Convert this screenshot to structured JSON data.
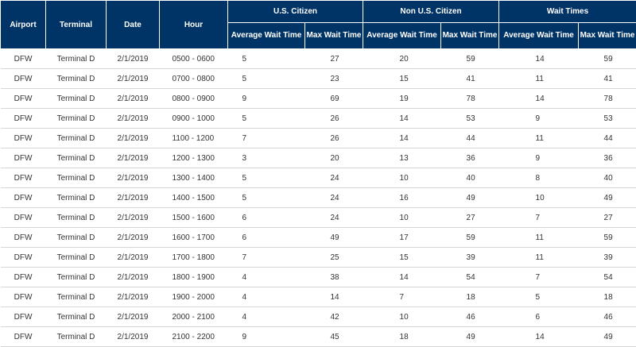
{
  "table": {
    "headers": {
      "airport": "Airport",
      "terminal": "Terminal",
      "date": "Date",
      "hour": "Hour",
      "us_citizen": "U.S. Citizen",
      "non_us_citizen": "Non U.S. Citizen",
      "wait_times": "Wait Times",
      "avg_wait_time": "Average Wait Time",
      "max_wait_time": "Max Wait Time"
    },
    "rows": [
      {
        "airport": "DFW",
        "terminal": "Terminal D",
        "date": "2/1/2019",
        "hour": "0500 - 0600",
        "us_avg": "5",
        "us_max": "27",
        "non_avg": "20",
        "non_max": "59",
        "wt_avg": "14",
        "wt_max": "59"
      },
      {
        "airport": "DFW",
        "terminal": "Terminal D",
        "date": "2/1/2019",
        "hour": "0700 - 0800",
        "us_avg": "5",
        "us_max": "23",
        "non_avg": "15",
        "non_max": "41",
        "wt_avg": "11",
        "wt_max": "41"
      },
      {
        "airport": "DFW",
        "terminal": "Terminal D",
        "date": "2/1/2019",
        "hour": "0800 - 0900",
        "us_avg": "9",
        "us_max": "69",
        "non_avg": "19",
        "non_max": "78",
        "wt_avg": "14",
        "wt_max": "78"
      },
      {
        "airport": "DFW",
        "terminal": "Terminal D",
        "date": "2/1/2019",
        "hour": "0900 - 1000",
        "us_avg": "5",
        "us_max": "26",
        "non_avg": "14",
        "non_max": "53",
        "wt_avg": "9",
        "wt_max": "53"
      },
      {
        "airport": "DFW",
        "terminal": "Terminal D",
        "date": "2/1/2019",
        "hour": "1100 - 1200",
        "us_avg": "7",
        "us_max": "26",
        "non_avg": "14",
        "non_max": "44",
        "wt_avg": "11",
        "wt_max": "44"
      },
      {
        "airport": "DFW",
        "terminal": "Terminal D",
        "date": "2/1/2019",
        "hour": "1200 - 1300",
        "us_avg": "3",
        "us_max": "20",
        "non_avg": "13",
        "non_max": "36",
        "wt_avg": "9",
        "wt_max": "36"
      },
      {
        "airport": "DFW",
        "terminal": "Terminal D",
        "date": "2/1/2019",
        "hour": "1300 - 1400",
        "us_avg": "5",
        "us_max": "24",
        "non_avg": "10",
        "non_max": "40",
        "wt_avg": "8",
        "wt_max": "40"
      },
      {
        "airport": "DFW",
        "terminal": "Terminal D",
        "date": "2/1/2019",
        "hour": "1400 - 1500",
        "us_avg": "5",
        "us_max": "24",
        "non_avg": "16",
        "non_max": "49",
        "wt_avg": "10",
        "wt_max": "49"
      },
      {
        "airport": "DFW",
        "terminal": "Terminal D",
        "date": "2/1/2019",
        "hour": "1500 - 1600",
        "us_avg": "6",
        "us_max": "24",
        "non_avg": "10",
        "non_max": "27",
        "wt_avg": "7",
        "wt_max": "27"
      },
      {
        "airport": "DFW",
        "terminal": "Terminal D",
        "date": "2/1/2019",
        "hour": "1600 - 1700",
        "us_avg": "6",
        "us_max": "49",
        "non_avg": "17",
        "non_max": "59",
        "wt_avg": "11",
        "wt_max": "59"
      },
      {
        "airport": "DFW",
        "terminal": "Terminal D",
        "date": "2/1/2019",
        "hour": "1700 - 1800",
        "us_avg": "7",
        "us_max": "25",
        "non_avg": "15",
        "non_max": "39",
        "wt_avg": "11",
        "wt_max": "39"
      },
      {
        "airport": "DFW",
        "terminal": "Terminal D",
        "date": "2/1/2019",
        "hour": "1800 - 1900",
        "us_avg": "4",
        "us_max": "38",
        "non_avg": "14",
        "non_max": "54",
        "wt_avg": "7",
        "wt_max": "54"
      },
      {
        "airport": "DFW",
        "terminal": "Terminal D",
        "date": "2/1/2019",
        "hour": "1900 - 2000",
        "us_avg": "4",
        "us_max": "14",
        "non_avg": "7",
        "non_max": "18",
        "wt_avg": "5",
        "wt_max": "18"
      },
      {
        "airport": "DFW",
        "terminal": "Terminal D",
        "date": "2/1/2019",
        "hour": "2000 - 2100",
        "us_avg": "4",
        "us_max": "42",
        "non_avg": "10",
        "non_max": "46",
        "wt_avg": "6",
        "wt_max": "46"
      },
      {
        "airport": "DFW",
        "terminal": "Terminal D",
        "date": "2/1/2019",
        "hour": "2100 - 2200",
        "us_avg": "9",
        "us_max": "45",
        "non_avg": "18",
        "non_max": "49",
        "wt_avg": "14",
        "wt_max": "49"
      }
    ]
  }
}
